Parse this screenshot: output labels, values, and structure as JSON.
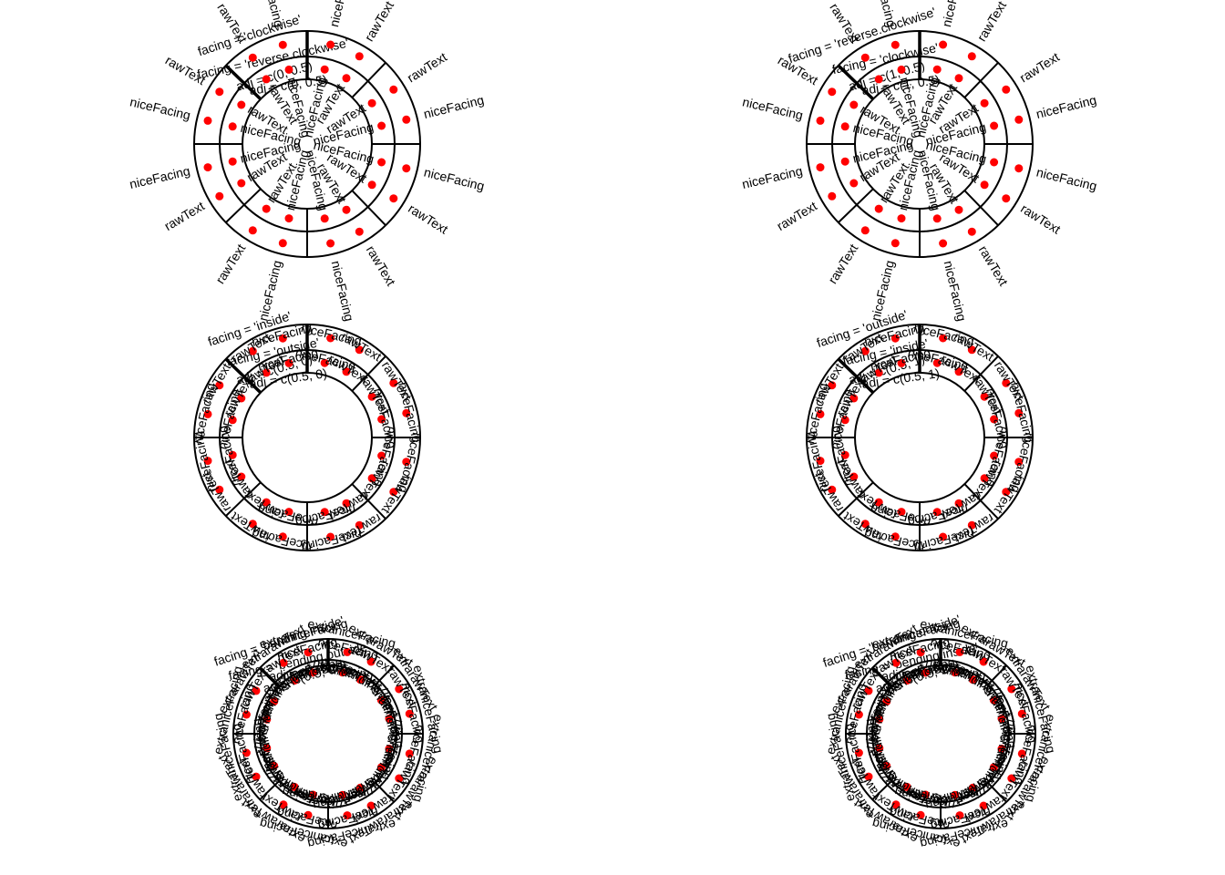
{
  "labels": {
    "nice": "niceFacing",
    "raw": "rawText",
    "extra": "extra",
    "bending": "bending"
  },
  "panels": [
    {
      "id": "panel-clockwise",
      "titles": [
        "facing = 'clockwise'",
        "facing = 'reverse.clockwise'",
        "adj = c(0, 0.5)",
        "adj = c(0, 0.5)"
      ],
      "labelColumns": 2,
      "fanout": true
    },
    {
      "id": "panel-reverse-clockwise",
      "titles": [
        "facing = 'reverse.clockwise'",
        "facing = 'clockwise'",
        "adj = c(1, 0.5)",
        "adj = c(1, 0.5)"
      ],
      "labelColumns": 2,
      "fanout": true
    },
    {
      "id": "panel-inside",
      "titles": [
        "facing = 'inside'",
        "facing = 'outside'",
        "adj = c(0.5, 0)",
        "adj = c(0.5, 0)"
      ],
      "labelColumns": 2,
      "fanout": false
    },
    {
      "id": "panel-outside",
      "titles": [
        "facing = 'outside'",
        "facing = 'inside'",
        "adj = c(0.5, 1)",
        "adj = c(0.5, 1)"
      ],
      "labelColumns": 2,
      "fanout": false
    },
    {
      "id": "panel-bending-inside",
      "titles": [
        "facing = 'bending.inside'",
        "facing = 'bending.outside'",
        "adj = c(0.5, 0)",
        "adj = c(0.5, 0)"
      ],
      "labelColumns": 3,
      "fanout": false
    },
    {
      "id": "panel-bending-outside",
      "titles": [
        "facing = 'bending.outside'",
        "facing = 'bending.inside'",
        "adj = c(0.5, 1)",
        "adj = c(0.5, 1)"
      ],
      "labelColumns": 3,
      "fanout": false
    }
  ]
}
